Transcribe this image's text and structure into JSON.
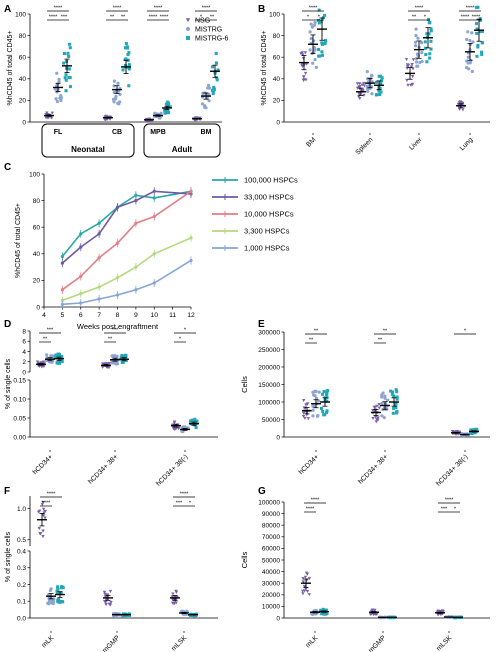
{
  "colors": {
    "nsg": "#7b62a8",
    "mistrg": "#8ea5d4",
    "mistrg6": "#23a7b8",
    "hspc100k": "#2aa7a7",
    "hspc33k": "#6e5aa5",
    "hspc10k": "#e57d87",
    "hspc3300": "#b5d97e",
    "hspc1000": "#86a6d6",
    "axis": "#000000"
  },
  "legend": {
    "title": "",
    "items": [
      "NSG",
      "MISTRG",
      "MISTRG-6"
    ]
  },
  "chart_data": [
    {
      "panel": "A",
      "type": "scatter",
      "ylabel": "%hCD45 of total CD45+",
      "ylim": [
        0,
        100
      ],
      "yticks": [
        0,
        20,
        40,
        60,
        80,
        100
      ],
      "categories": [
        "FL",
        "CB",
        "MPB",
        "BM"
      ],
      "groups": [
        {
          "name": "Neonatal",
          "categories": [
            "FL",
            "CB"
          ]
        },
        {
          "name": "Adult",
          "categories": [
            "MPB",
            "BM"
          ]
        }
      ],
      "series": [
        {
          "name": "NSG",
          "means": [
            6,
            4,
            2,
            3
          ]
        },
        {
          "name": "MISTRG",
          "means": [
            32,
            30,
            6,
            24
          ]
        },
        {
          "name": "MISTRG-6",
          "means": [
            52,
            51,
            13,
            47
          ]
        }
      ],
      "significance": [
        {
          "category": "FL",
          "labels": [
            "****",
            "****",
            "***"
          ]
        },
        {
          "category": "CB",
          "labels": [
            "****",
            "**",
            "**"
          ]
        },
        {
          "category": "MPB",
          "labels": [
            "****",
            "****",
            "****"
          ]
        },
        {
          "category": "BM",
          "labels": [
            "****",
            "*",
            "**"
          ]
        }
      ]
    },
    {
      "panel": "B",
      "type": "scatter",
      "ylabel": "%hCD45 of total CD45+",
      "ylim": [
        0,
        100
      ],
      "yticks": [
        0,
        20,
        40,
        60,
        80,
        100
      ],
      "categories": [
        "BM",
        "Spleen",
        "Liver",
        "Lung"
      ],
      "series": [
        {
          "name": "NSG",
          "means": [
            55,
            28,
            45,
            15
          ]
        },
        {
          "name": "MISTRG",
          "means": [
            72,
            36,
            67,
            65
          ]
        },
        {
          "name": "MISTRG-6",
          "means": [
            86,
            34,
            78,
            85
          ]
        }
      ],
      "significance": [
        {
          "category": "BM",
          "labels": [
            "****",
            "*",
            "*"
          ]
        },
        {
          "category": "Liver",
          "labels": [
            "****",
            "**",
            "*"
          ]
        },
        {
          "category": "Lung",
          "labels": [
            "****",
            "****",
            "****"
          ]
        }
      ]
    },
    {
      "panel": "C",
      "type": "line",
      "xlabel": "Weeks post engraftment",
      "ylabel": "%hCD45 of total CD45+",
      "x": [
        5,
        6,
        7,
        8,
        9,
        10,
        12
      ],
      "xlim": [
        4,
        12
      ],
      "ylim": [
        0,
        100
      ],
      "xticks": [
        4,
        5,
        6,
        7,
        8,
        9,
        10,
        11,
        12
      ],
      "yticks": [
        0,
        20,
        40,
        60,
        80,
        100
      ],
      "series": [
        {
          "name": "100,000 HSPCs",
          "values": [
            38,
            55,
            63,
            75,
            84,
            82,
            87
          ]
        },
        {
          "name": "33,000 HSPCs",
          "values": [
            33,
            45,
            55,
            75,
            80,
            87,
            85
          ]
        },
        {
          "name": "10,000 HSPCs",
          "values": [
            13,
            23,
            37,
            48,
            63,
            68,
            87
          ]
        },
        {
          "name": "3,300 HSPCs",
          "values": [
            5,
            10,
            15,
            22,
            30,
            40,
            52
          ]
        },
        {
          "name": "1,000 HSPCs",
          "values": [
            2,
            3,
            6,
            9,
            13,
            18,
            35
          ]
        }
      ]
    },
    {
      "panel": "D",
      "type": "scatter",
      "ylabel": "% of single cells",
      "ylim_top": [
        0,
        8
      ],
      "yticks_top": [
        0,
        2,
        4,
        6,
        8
      ],
      "ylim_bottom": [
        0,
        0.15
      ],
      "yticks_bottom": [
        0.0,
        0.05,
        0.1,
        0.15
      ],
      "categories": [
        "hCD34+",
        "hCD34+ 38+",
        "hCD34+ 38(-)"
      ],
      "series": [
        {
          "name": "NSG",
          "means": [
            1.5,
            1.3,
            0.03
          ]
        },
        {
          "name": "MISTRG",
          "means": [
            2.5,
            2.4,
            0.02
          ]
        },
        {
          "name": "MISTRG-6",
          "means": [
            2.6,
            2.5,
            0.035
          ]
        }
      ],
      "significance": [
        {
          "category": "hCD34+",
          "labels": [
            "***",
            "**"
          ]
        },
        {
          "category": "hCD34+ 38+",
          "labels": [
            "***",
            "**"
          ]
        },
        {
          "category": "hCD34+ 38(-)",
          "labels": [
            "*",
            "*"
          ]
        }
      ]
    },
    {
      "panel": "E",
      "type": "scatter",
      "ylabel": "Cells",
      "ylim": [
        0,
        300000
      ],
      "yticks": [
        0,
        50000,
        100000,
        150000,
        200000,
        250000,
        300000
      ],
      "categories": [
        "hCD34+",
        "hCD34+ 38+",
        "hCD34+ 38(-)"
      ],
      "series": [
        {
          "name": "NSG",
          "means": [
            75000,
            70000,
            12000
          ]
        },
        {
          "name": "MISTRG",
          "means": [
            95000,
            90000,
            7000
          ]
        },
        {
          "name": "MISTRG-6",
          "means": [
            100000,
            100000,
            16000
          ]
        }
      ],
      "significance": [
        {
          "category": "hCD34+",
          "labels": [
            "**",
            "**"
          ]
        },
        {
          "category": "hCD34+ 38+",
          "labels": [
            "**",
            "**"
          ]
        },
        {
          "category": "hCD34+ 38(-)",
          "labels": [
            "*"
          ]
        }
      ]
    },
    {
      "panel": "F",
      "type": "scatter",
      "ylabel": "% of single cells",
      "ylim_top": [
        0.4,
        1.2
      ],
      "yticks_top": [
        0.5,
        1.0
      ],
      "ylim_bottom": [
        0,
        0.4
      ],
      "yticks_bottom": [
        0.0,
        0.1,
        0.2,
        0.3,
        0.4
      ],
      "categories": [
        "mLK",
        "mGMP",
        "mLSK"
      ],
      "series": [
        {
          "name": "NSG",
          "means": [
            0.82,
            0.12,
            0.12
          ]
        },
        {
          "name": "MISTRG",
          "means": [
            0.13,
            0.02,
            0.03
          ]
        },
        {
          "name": "MISTRG-6",
          "means": [
            0.14,
            0.02,
            0.02
          ]
        }
      ],
      "significance": [
        {
          "category": "mLK",
          "labels": [
            "****",
            "****"
          ]
        },
        {
          "category": "mLSK",
          "labels": [
            "****",
            "***",
            "*"
          ]
        }
      ]
    },
    {
      "panel": "G",
      "type": "scatter",
      "ylabel": "Cells",
      "ylim": [
        0,
        100000
      ],
      "yticks": [
        0,
        10000,
        20000,
        30000,
        40000,
        50000,
        60000,
        70000,
        80000,
        90000,
        100000
      ],
      "categories": [
        "mLK",
        "mGMP",
        "mLSK"
      ],
      "series": [
        {
          "name": "NSG",
          "means": [
            30000,
            5000,
            4500
          ]
        },
        {
          "name": "MISTRG",
          "means": [
            5000,
            500,
            800
          ]
        },
        {
          "name": "MISTRG-6",
          "means": [
            5500,
            500,
            500
          ]
        }
      ],
      "significance": [
        {
          "category": "mLK",
          "labels": [
            "****",
            "****"
          ]
        },
        {
          "category": "mLSK",
          "labels": [
            "****",
            "***",
            "*"
          ]
        }
      ]
    }
  ]
}
